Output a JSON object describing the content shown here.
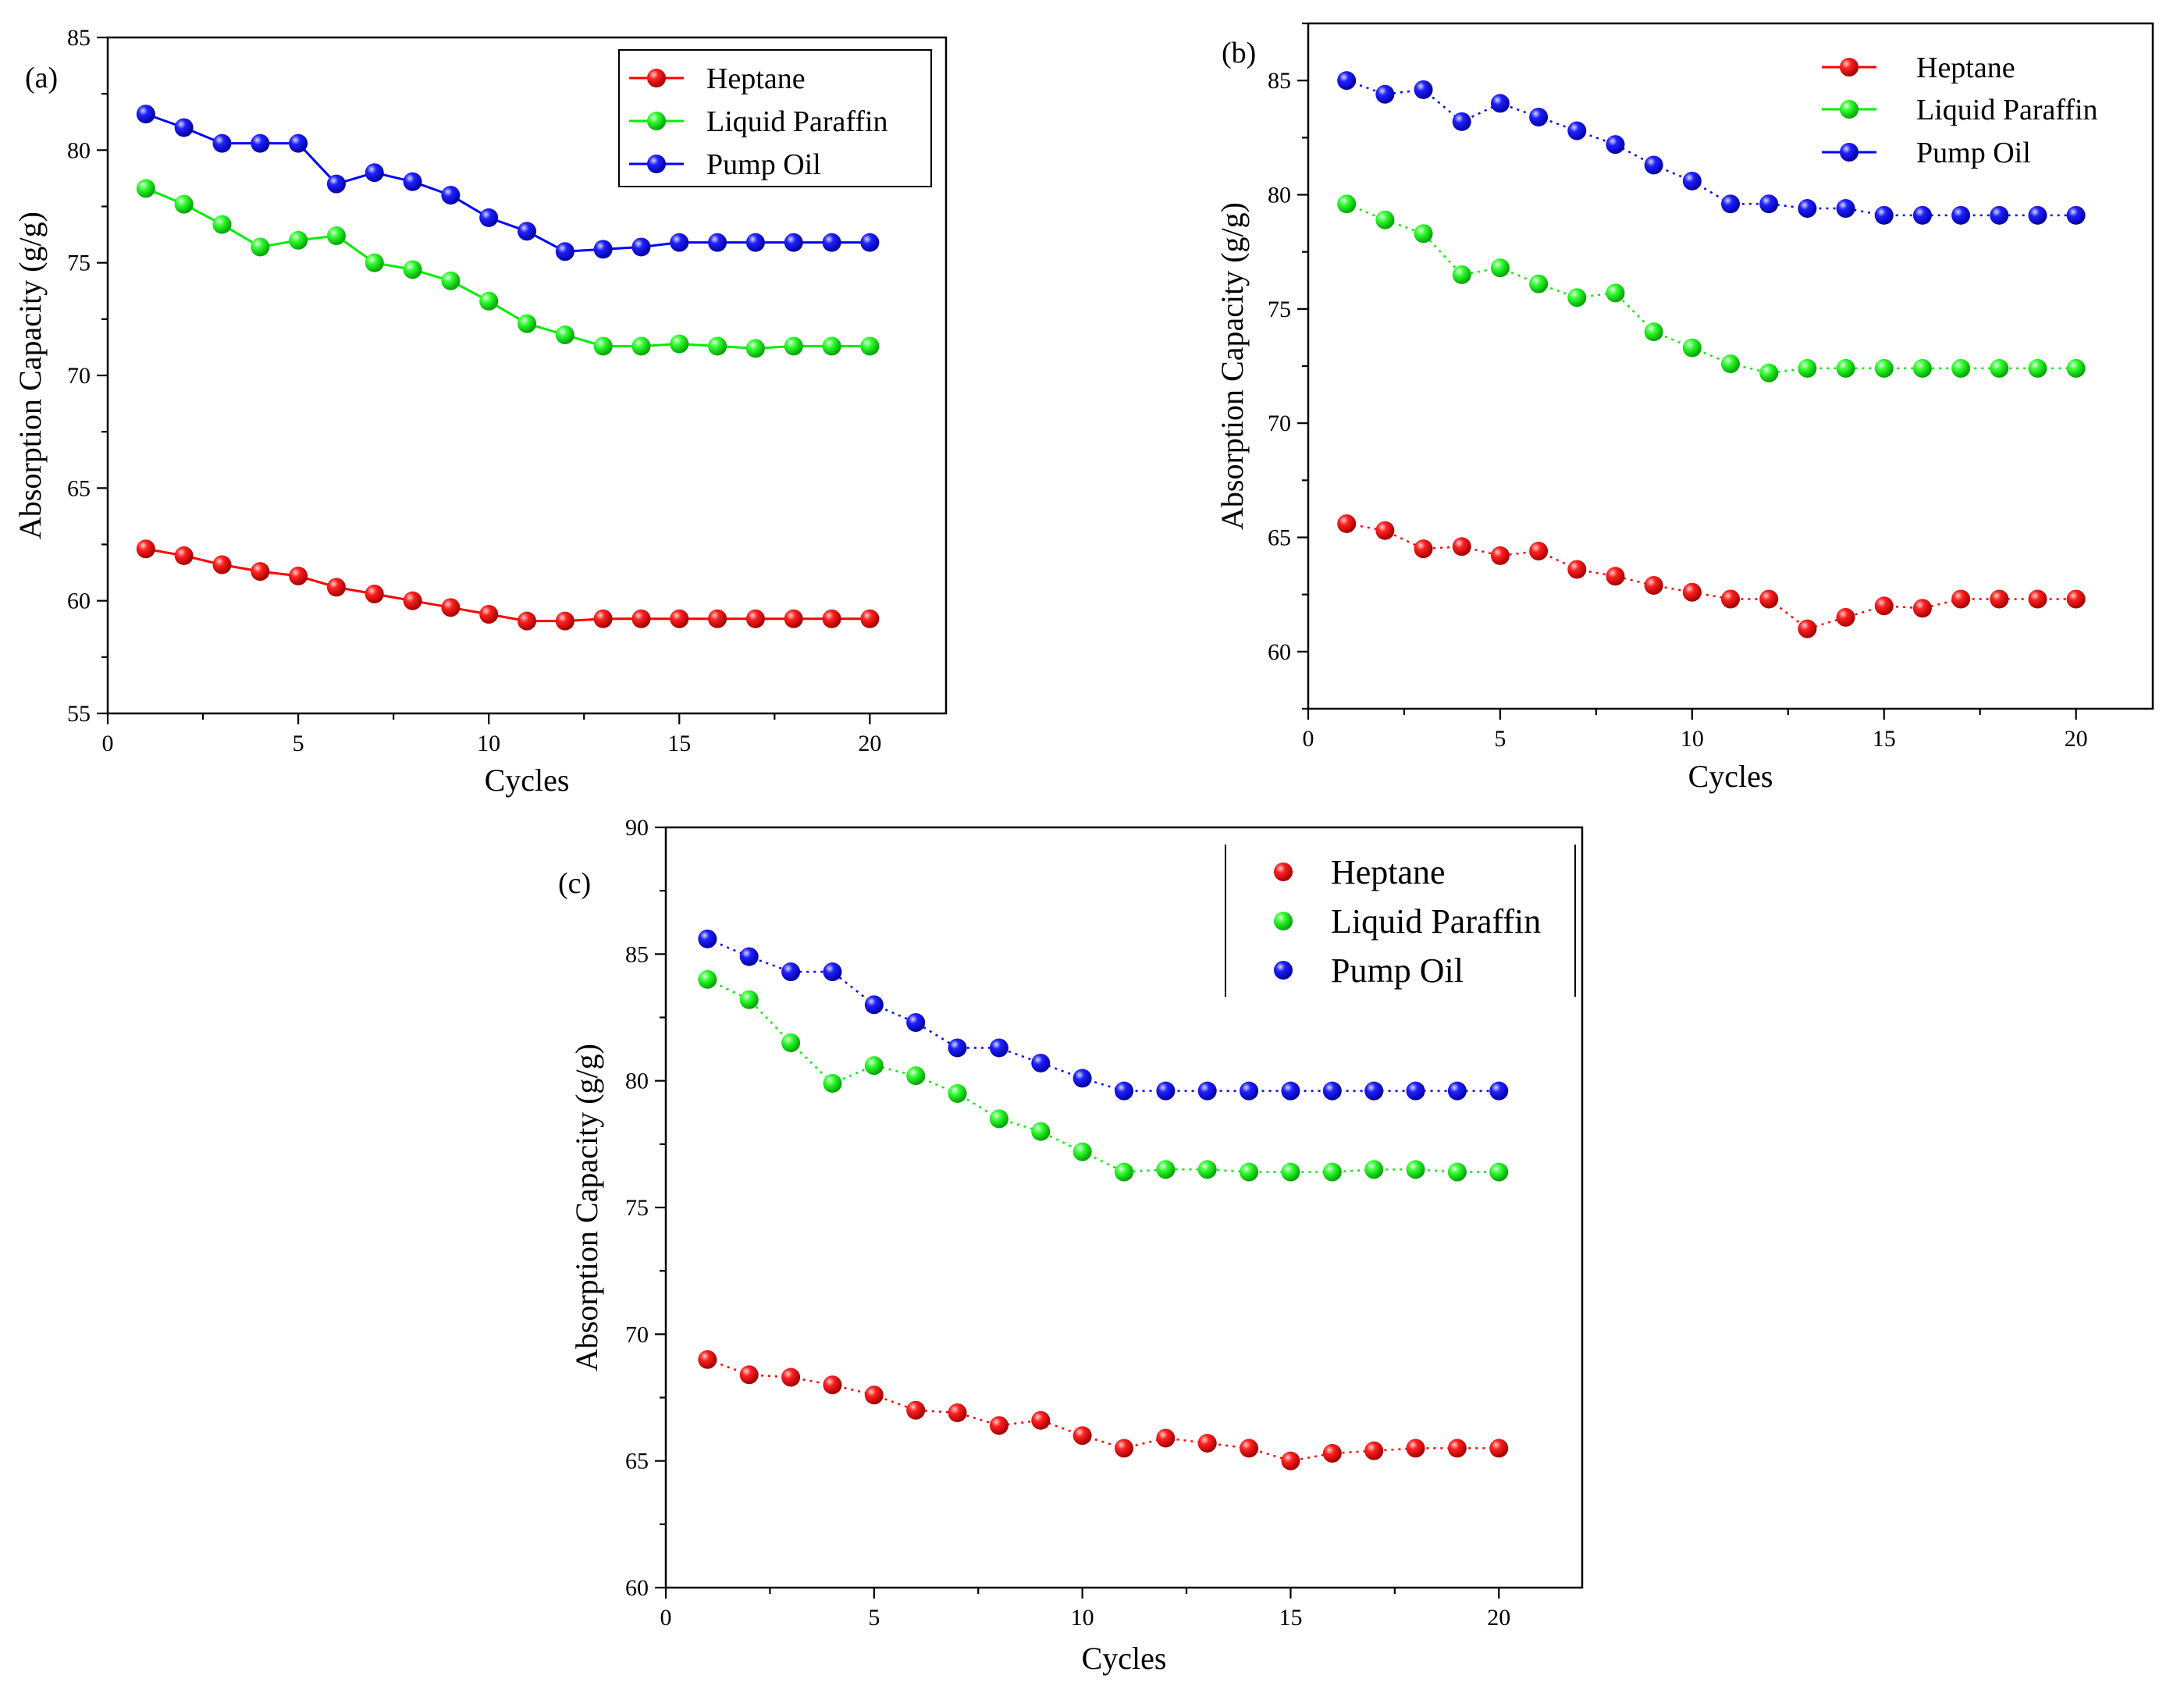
{
  "chart_data": [
    {
      "type": "line",
      "panel_label": "(a)",
      "xlabel": "Cycles",
      "ylabel": "Absorption Capacity (g/g)",
      "xlim": [
        0,
        22
      ],
      "ylim": [
        55,
        85
      ],
      "xticks": [
        0,
        5,
        10,
        15,
        20
      ],
      "yticks": [
        55,
        60,
        65,
        70,
        75,
        80,
        85
      ],
      "x": [
        1,
        2,
        3,
        4,
        5,
        6,
        7,
        8,
        9,
        10,
        11,
        12,
        13,
        14,
        15,
        16,
        17,
        18,
        19,
        20
      ],
      "legend": "top-right",
      "series": [
        {
          "name": "Heptane",
          "color": "#ff0000",
          "line": "solid",
          "values": [
            62.3,
            62.0,
            61.6,
            61.3,
            61.1,
            60.6,
            60.3,
            60.0,
            59.7,
            59.4,
            59.1,
            59.1,
            59.2,
            59.2,
            59.2,
            59.2,
            59.2,
            59.2,
            59.2,
            59.2
          ]
        },
        {
          "name": "Liquid Paraffin",
          "color": "#00ee00",
          "line": "solid",
          "values": [
            78.3,
            77.6,
            76.7,
            75.7,
            76.0,
            76.2,
            75.0,
            74.7,
            74.2,
            73.3,
            72.3,
            71.8,
            71.3,
            71.3,
            71.4,
            71.3,
            71.2,
            71.3,
            71.3,
            71.3
          ]
        },
        {
          "name": "Pump Oil",
          "color": "#0000ff",
          "line": "solid",
          "values": [
            81.6,
            81.0,
            80.3,
            80.3,
            80.3,
            78.5,
            79.0,
            78.6,
            78.0,
            77.0,
            76.4,
            75.5,
            75.6,
            75.7,
            75.9,
            75.9,
            75.9,
            75.9,
            75.9,
            75.9
          ]
        }
      ]
    },
    {
      "type": "line",
      "panel_label": "(b)",
      "xlabel": "Cycles",
      "ylabel": "Absorption Capacity (g/g)",
      "xlim": [
        0,
        22
      ],
      "ylim": [
        57.5,
        87.5
      ],
      "xticks": [
        0,
        5,
        10,
        15,
        20
      ],
      "yticks": [
        60,
        65,
        70,
        75,
        80,
        85
      ],
      "x": [
        1,
        2,
        3,
        4,
        5,
        6,
        7,
        8,
        9,
        10,
        11,
        12,
        13,
        14,
        15,
        16,
        17,
        18,
        19,
        20
      ],
      "legend": "top-right",
      "series": [
        {
          "name": "Heptane",
          "color": "#ff0000",
          "line": "dotted",
          "values": [
            65.6,
            65.3,
            64.5,
            64.6,
            64.2,
            64.4,
            63.6,
            63.3,
            62.9,
            62.6,
            62.3,
            62.3,
            61.0,
            61.5,
            62.0,
            61.9,
            62.3,
            62.3,
            62.3,
            62.3
          ]
        },
        {
          "name": "Liquid Paraffin",
          "color": "#00ee00",
          "line": "dotted",
          "values": [
            79.6,
            78.9,
            78.3,
            76.5,
            76.8,
            76.1,
            75.5,
            75.7,
            74.0,
            73.3,
            72.6,
            72.2,
            72.4,
            72.4,
            72.4,
            72.4,
            72.4,
            72.4,
            72.4,
            72.4
          ]
        },
        {
          "name": "Pump Oil",
          "color": "#0000ff",
          "line": "dotted",
          "values": [
            85.0,
            84.4,
            84.6,
            83.2,
            84.0,
            83.4,
            82.8,
            82.2,
            81.3,
            80.6,
            79.6,
            79.6,
            79.4,
            79.4,
            79.1,
            79.1,
            79.1,
            79.1,
            79.1,
            79.1
          ]
        }
      ]
    },
    {
      "type": "line",
      "panel_label": "(c)",
      "xlabel": "Cycles",
      "ylabel": "Absorption Capacity (g/g)",
      "xlim": [
        0,
        22
      ],
      "ylim": [
        60,
        90
      ],
      "xticks": [
        0,
        5,
        10,
        15,
        20
      ],
      "yticks": [
        60,
        65,
        70,
        75,
        80,
        85,
        90
      ],
      "x": [
        1,
        2,
        3,
        4,
        5,
        6,
        7,
        8,
        9,
        10,
        11,
        12,
        13,
        14,
        15,
        16,
        17,
        18,
        19,
        20
      ],
      "legend": "top-right",
      "series": [
        {
          "name": "Heptane",
          "color": "#ff0000",
          "line": "dotted",
          "values": [
            69.0,
            68.4,
            68.3,
            68.0,
            67.6,
            67.0,
            66.9,
            66.4,
            66.6,
            66.0,
            65.5,
            65.9,
            65.7,
            65.5,
            65.0,
            65.3,
            65.4,
            65.5,
            65.5,
            65.5
          ]
        },
        {
          "name": "Liquid Paraffin",
          "color": "#00ee00",
          "line": "dotted",
          "values": [
            84.0,
            83.2,
            81.5,
            79.9,
            80.6,
            80.2,
            79.5,
            78.5,
            78.0,
            77.2,
            76.4,
            76.5,
            76.5,
            76.4,
            76.4,
            76.4,
            76.5,
            76.5,
            76.4,
            76.4
          ]
        },
        {
          "name": "Pump Oil",
          "color": "#0000ff",
          "line": "dotted",
          "values": [
            85.6,
            84.9,
            84.3,
            84.3,
            83.0,
            82.3,
            81.3,
            81.3,
            80.7,
            80.1,
            79.6,
            79.6,
            79.6,
            79.6,
            79.6,
            79.6,
            79.6,
            79.6,
            79.6,
            79.6
          ]
        }
      ]
    }
  ]
}
